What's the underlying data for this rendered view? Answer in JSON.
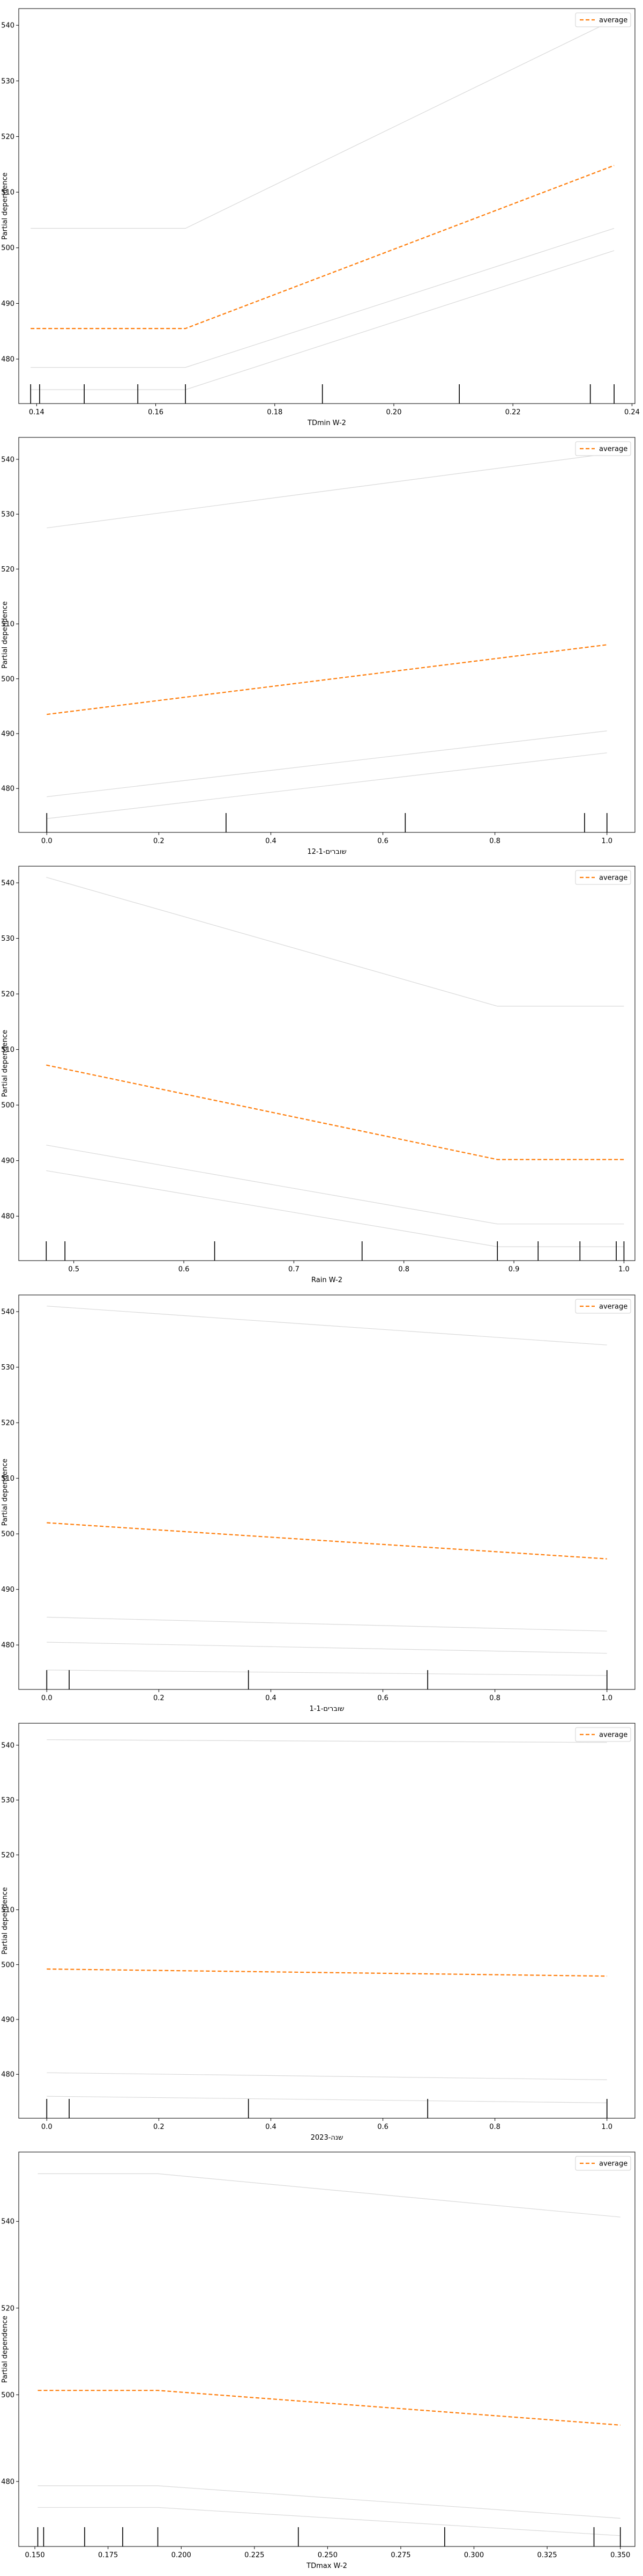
{
  "chart_data": [
    {
      "type": "line",
      "xlabel": "TDmin W-2",
      "ylabel": "Partial dependence",
      "legend": "average",
      "legend_placement": "top-right",
      "grid": false,
      "xlim": [
        0.137,
        0.2405
      ],
      "ylim": [
        472,
        543
      ],
      "xticks": [
        0.14,
        0.16,
        0.18,
        0.2,
        0.22,
        0.24
      ],
      "xtick_labels": [
        "0.14",
        "0.16",
        "0.18",
        "0.20",
        "0.22",
        "0.24"
      ],
      "yticks": [
        480,
        490,
        500,
        510,
        520,
        530,
        540
      ],
      "ytick_labels": [
        "480",
        "490",
        "500",
        "510",
        "520",
        "530",
        "540"
      ],
      "average": {
        "x": [
          0.139,
          0.165,
          0.237
        ],
        "y": [
          485.5,
          485.5,
          514.8
        ]
      },
      "ice": [
        {
          "x": [
            0.139,
            0.165,
            0.237
          ],
          "y": [
            503.5,
            503.5,
            541.0
          ]
        },
        {
          "x": [
            0.139,
            0.165,
            0.237
          ],
          "y": [
            478.5,
            478.5,
            503.5
          ]
        },
        {
          "x": [
            0.139,
            0.165,
            0.237
          ],
          "y": [
            474.5,
            474.5,
            499.5
          ]
        }
      ],
      "rug": [
        0.139,
        0.1405,
        0.148,
        0.157,
        0.165,
        0.188,
        0.211,
        0.233,
        0.237
      ]
    },
    {
      "type": "line",
      "xlabel": "שוברים-12-1",
      "ylabel": "Partial dependence",
      "legend": "average",
      "legend_placement": "top-right",
      "grid": false,
      "xlim": [
        -0.05,
        1.05
      ],
      "ylim": [
        472,
        544
      ],
      "xticks": [
        0.0,
        0.2,
        0.4,
        0.6,
        0.8,
        1.0
      ],
      "xtick_labels": [
        "0.0",
        "0.2",
        "0.4",
        "0.6",
        "0.8",
        "1.0"
      ],
      "yticks": [
        480,
        490,
        500,
        510,
        520,
        530,
        540
      ],
      "ytick_labels": [
        "480",
        "490",
        "500",
        "510",
        "520",
        "530",
        "540"
      ],
      "average": {
        "x": [
          0.0,
          1.0
        ],
        "y": [
          493.5,
          506.2
        ]
      },
      "ice": [
        {
          "x": [
            0.0,
            1.0
          ],
          "y": [
            527.5,
            541.0
          ]
        },
        {
          "x": [
            0.0,
            1.0
          ],
          "y": [
            478.5,
            490.5
          ]
        },
        {
          "x": [
            0.0,
            1.0
          ],
          "y": [
            474.5,
            486.5
          ]
        }
      ],
      "rug": [
        0.0,
        0.32,
        0.64,
        0.96,
        1.0
      ]
    },
    {
      "type": "line",
      "xlabel": "Rain W-2",
      "ylabel": "Partial dependence",
      "legend": "average",
      "legend_placement": "top-right",
      "grid": false,
      "xlim": [
        0.45,
        1.01
      ],
      "ylim": [
        472,
        543
      ],
      "xticks": [
        0.5,
        0.6,
        0.7,
        0.8,
        0.9,
        1.0
      ],
      "xtick_labels": [
        "0.5",
        "0.6",
        "0.7",
        "0.8",
        "0.9",
        "1.0"
      ],
      "yticks": [
        480,
        490,
        500,
        510,
        520,
        530,
        540
      ],
      "ytick_labels": [
        "480",
        "490",
        "500",
        "510",
        "520",
        "530",
        "540"
      ],
      "average": {
        "x": [
          0.475,
          0.885,
          1.0
        ],
        "y": [
          507.2,
          490.2,
          490.2
        ]
      },
      "ice": [
        {
          "x": [
            0.475,
            0.885,
            1.0
          ],
          "y": [
            541.0,
            517.8,
            517.8
          ]
        },
        {
          "x": [
            0.475,
            0.885,
            1.0
          ],
          "y": [
            492.8,
            478.6,
            478.6
          ]
        },
        {
          "x": [
            0.475,
            0.885,
            1.0
          ],
          "y": [
            488.2,
            474.5,
            474.5
          ]
        }
      ],
      "rug": [
        0.475,
        0.492,
        0.628,
        0.762,
        0.885,
        0.922,
        0.96,
        0.993,
        1.0
      ]
    },
    {
      "type": "line",
      "xlabel": "שוברים-1-1",
      "ylabel": "Partial dependence",
      "legend": "average",
      "legend_placement": "top-right",
      "grid": false,
      "xlim": [
        -0.05,
        1.05
      ],
      "ylim": [
        472,
        543
      ],
      "xticks": [
        0.0,
        0.2,
        0.4,
        0.6,
        0.8,
        1.0
      ],
      "xtick_labels": [
        "0.0",
        "0.2",
        "0.4",
        "0.6",
        "0.8",
        "1.0"
      ],
      "yticks": [
        480,
        490,
        500,
        510,
        520,
        530,
        540
      ],
      "ytick_labels": [
        "480",
        "490",
        "500",
        "510",
        "520",
        "530",
        "540"
      ],
      "average": {
        "x": [
          0.0,
          1.0
        ],
        "y": [
          502.0,
          495.5
        ]
      },
      "ice": [
        {
          "x": [
            0.0,
            1.0
          ],
          "y": [
            541.0,
            534.0
          ]
        },
        {
          "x": [
            0.0,
            1.0
          ],
          "y": [
            485.0,
            482.5
          ]
        },
        {
          "x": [
            0.0,
            1.0
          ],
          "y": [
            480.5,
            478.5
          ]
        },
        {
          "x": [
            0.0,
            1.0
          ],
          "y": [
            475.5,
            474.5
          ]
        }
      ],
      "rug": [
        0.0,
        0.04,
        0.36,
        0.68,
        1.0
      ]
    },
    {
      "type": "line",
      "xlabel": "שנה-2023",
      "ylabel": "Partial dependence",
      "legend": "average",
      "legend_placement": "top-right",
      "grid": false,
      "xlim": [
        -0.05,
        1.05
      ],
      "ylim": [
        472,
        544
      ],
      "xticks": [
        0.0,
        0.2,
        0.4,
        0.6,
        0.8,
        1.0
      ],
      "xtick_labels": [
        "0.0",
        "0.2",
        "0.4",
        "0.6",
        "0.8",
        "1.0"
      ],
      "yticks": [
        480,
        490,
        500,
        510,
        520,
        530,
        540
      ],
      "ytick_labels": [
        "480",
        "490",
        "500",
        "510",
        "520",
        "530",
        "540"
      ],
      "average": {
        "x": [
          0.0,
          1.0
        ],
        "y": [
          499.2,
          497.9
        ]
      },
      "ice": [
        {
          "x": [
            0.0,
            1.0
          ],
          "y": [
            541.0,
            540.5
          ]
        },
        {
          "x": [
            0.0,
            1.0
          ],
          "y": [
            480.3,
            479.0
          ]
        },
        {
          "x": [
            0.0,
            1.0
          ],
          "y": [
            476.0,
            474.8
          ]
        }
      ],
      "rug": [
        0.0,
        0.04,
        0.36,
        0.68,
        1.0
      ]
    },
    {
      "type": "line",
      "xlabel": "TDmax W-2",
      "ylabel": "Partial dependence",
      "legend": "average",
      "legend_placement": "top-right",
      "grid": false,
      "xlim": [
        0.1445,
        0.355
      ],
      "ylim": [
        465,
        556
      ],
      "xticks": [
        0.15,
        0.175,
        0.2,
        0.225,
        0.25,
        0.275,
        0.3,
        0.325,
        0.35
      ],
      "xtick_labels": [
        "0.150",
        "0.175",
        "0.200",
        "0.225",
        "0.250",
        "0.275",
        "0.300",
        "0.325",
        "0.350"
      ],
      "yticks": [
        480,
        500,
        520,
        540
      ],
      "ytick_labels": [
        "480",
        "500",
        "520",
        "540"
      ],
      "average": {
        "x": [
          0.151,
          0.192,
          0.35
        ],
        "y": [
          501.0,
          501.0,
          493.0
        ]
      },
      "ice": [
        {
          "x": [
            0.151,
            0.192,
            0.35
          ],
          "y": [
            551.0,
            551.0,
            541.0
          ]
        },
        {
          "x": [
            0.151,
            0.192,
            0.35
          ],
          "y": [
            479.0,
            479.0,
            471.5
          ]
        },
        {
          "x": [
            0.151,
            0.192,
            0.35
          ],
          "y": [
            474.0,
            474.0,
            467.5
          ]
        }
      ],
      "rug": [
        0.151,
        0.153,
        0.167,
        0.18,
        0.192,
        0.24,
        0.29,
        0.341,
        0.35
      ]
    }
  ]
}
